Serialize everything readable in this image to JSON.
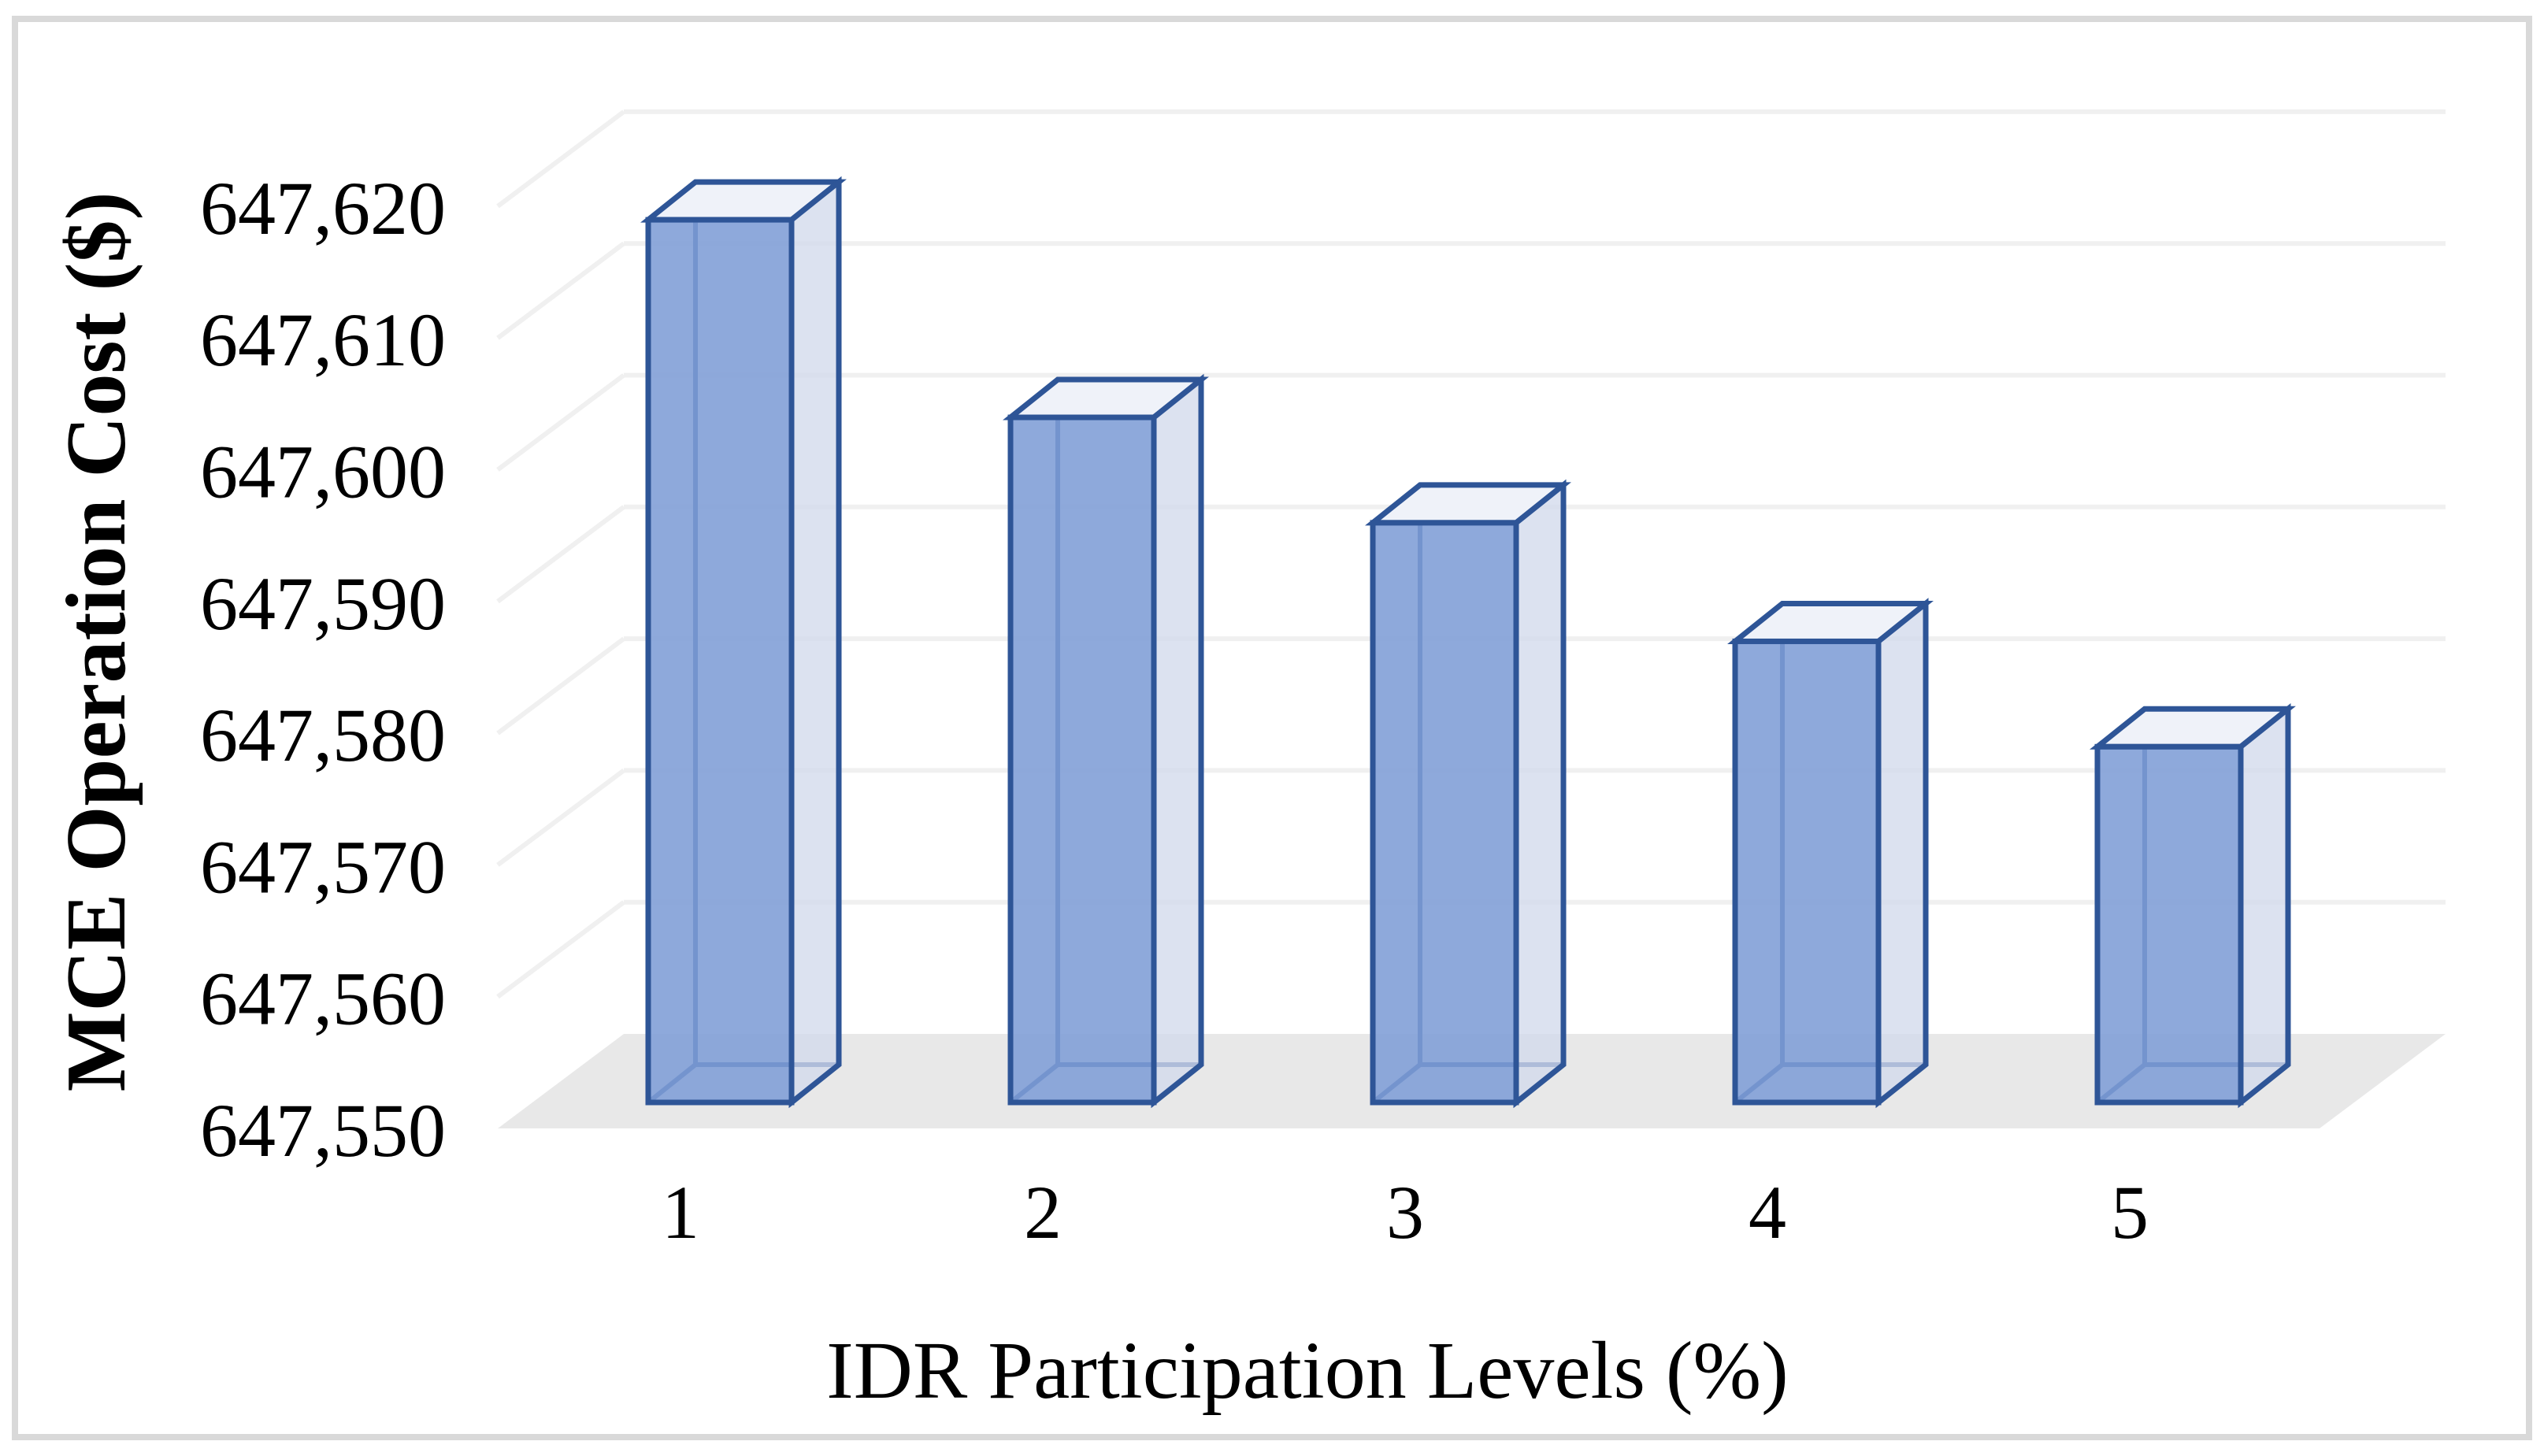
{
  "chart_data": {
    "type": "bar",
    "style": "3d-column",
    "title": "",
    "categories": [
      "1",
      "2",
      "3",
      "4",
      "5"
    ],
    "values": [
      647617,
      647602,
      647594,
      647585,
      647577
    ],
    "xlabel": "IDR Participation Levels (%)",
    "ylabel": "MCE Operation Cost ($)",
    "ylim": [
      647550,
      647620
    ],
    "ytick_interval": 10,
    "ytick_labels": [
      "647,550",
      "647,560",
      "647,570",
      "647,580",
      "647,590",
      "647,600",
      "647,610",
      "647,620"
    ],
    "grid": true,
    "legend": false
  },
  "colors": {
    "bar_front": "rgba(126,157,214,0.88)",
    "bar_side": "rgba(210,218,236,0.78)",
    "bar_top": "#EFF2F9",
    "bar_edge": "#2E5597",
    "floor": "#E8E8E8",
    "gridline": "#F0F0F0",
    "frame_border": "#D9D9D9",
    "text": "#000000"
  }
}
